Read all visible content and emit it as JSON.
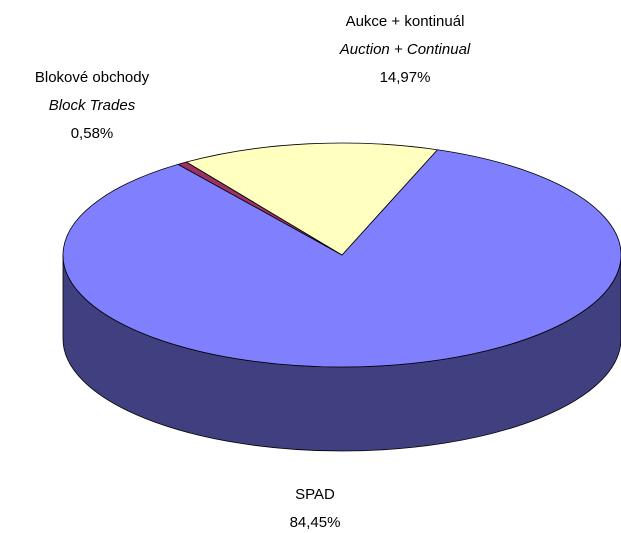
{
  "chart_data": {
    "type": "pie3d",
    "categories": [
      "SPAD",
      "Blokové obchody",
      "Aukce + kontinuál"
    ],
    "categories_en": [
      null,
      "Block Trades",
      "Auction + Continual"
    ],
    "values": [
      84.45,
      0.58,
      14.97
    ],
    "value_labels": [
      "84,45%",
      "0,58%",
      "14,97%"
    ],
    "colors": [
      "#8080ff",
      "#993366",
      "#ffffc0"
    ]
  }
}
